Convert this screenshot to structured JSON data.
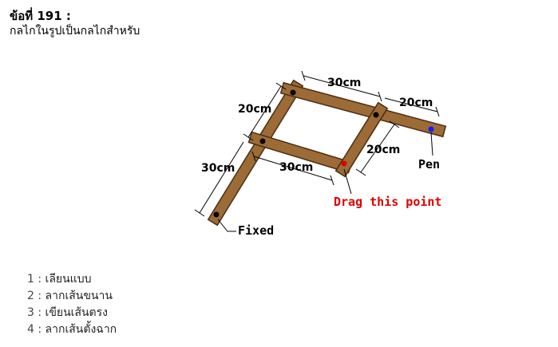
{
  "question": {
    "number_label": "ข้อที่ 191 :",
    "text": "กลไกในรูปเป็นกลไกสำหรับ"
  },
  "figure": {
    "labels": {
      "top_30cm": "30cm",
      "right_20cm_top": "20cm",
      "left_20cm": "20cm",
      "right_20cm_mid": "20cm",
      "left_30cm": "30cm",
      "bottom_30cm": "30cm",
      "pen": "Pen",
      "drag": "Drag this point",
      "fixed": "Fixed"
    },
    "colors": {
      "wood": "#9c6b36",
      "wood_edge": "#4a2e12",
      "drag_text": "#e00000",
      "drag_point": "#e00000",
      "pen_point": "#1a1aff"
    }
  },
  "options": [
    {
      "num": "1 :",
      "text": "เลียนแบบ"
    },
    {
      "num": "2 :",
      "text": "ลากเส้นขนาน"
    },
    {
      "num": "3 :",
      "text": "เขียนเส้นตรง"
    },
    {
      "num": "4 :",
      "text": "ลากเส้นตั้งฉาก"
    }
  ]
}
